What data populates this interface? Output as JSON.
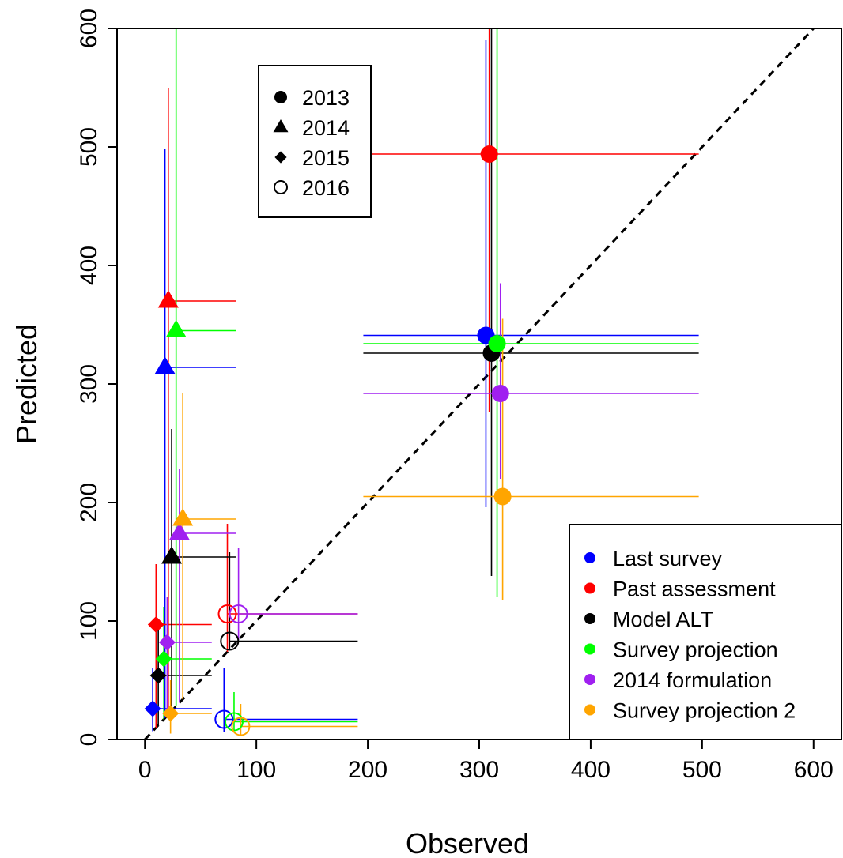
{
  "chart_data": {
    "type": "scatter",
    "title": "",
    "xlabel": "Observed",
    "ylabel": "Predicted",
    "xlim": [
      -25,
      625
    ],
    "ylim": [
      0,
      600
    ],
    "xticks": [
      "0",
      "100",
      "200",
      "300",
      "400",
      "500",
      "600"
    ],
    "yticks": [
      "0",
      "100",
      "200",
      "300",
      "400",
      "500",
      "600"
    ],
    "reference_line": {
      "type": "1:1",
      "style": "dashed",
      "color": "#000000"
    },
    "year_legend": {
      "placement": "top-left",
      "entries": [
        {
          "label": "2013",
          "shape": "circle-filled"
        },
        {
          "label": "2014",
          "shape": "triangle-filled"
        },
        {
          "label": "2015",
          "shape": "diamond-filled"
        },
        {
          "label": "2016",
          "shape": "circle-open"
        }
      ]
    },
    "method_legend": {
      "placement": "bottom-right",
      "entries": [
        {
          "label": "Last survey",
          "color": "#0000ff"
        },
        {
          "label": "Past assessment",
          "color": "#ff0000"
        },
        {
          "label": "Model ALT",
          "color": "#000000"
        },
        {
          "label": "Survey projection",
          "color": "#00ff00"
        },
        {
          "label": "2014 formulation",
          "color": "#a020f0"
        },
        {
          "label": "Survey projection 2",
          "color": "#ffa500"
        }
      ]
    },
    "series": [
      {
        "name": "Last survey",
        "color": "#0000ff",
        "points": [
          {
            "year": "2013",
            "x": 306,
            "y": 341,
            "xerr": [
              196,
              497
            ],
            "yerr": [
              196,
              590
            ]
          },
          {
            "year": "2014",
            "x": 18,
            "y": 314,
            "xerr": [
              18,
              82
            ],
            "yerr": [
              18,
              498
            ]
          },
          {
            "year": "2015",
            "x": 7,
            "y": 26,
            "xerr": [
              7,
              60
            ],
            "yerr": [
              7,
              60
            ]
          },
          {
            "year": "2016",
            "x": 71,
            "y": 17,
            "xerr": [
              71,
              191
            ],
            "yerr": [
              6,
              60
            ]
          }
        ]
      },
      {
        "name": "Past assessment",
        "color": "#ff0000",
        "points": [
          {
            "year": "2013",
            "x": 309,
            "y": 494,
            "xerr": [
              196,
              497
            ],
            "yerr": [
              276,
              600
            ]
          },
          {
            "year": "2014",
            "x": 21,
            "y": 370,
            "xerr": [
              21,
              82
            ],
            "yerr": [
              21,
              550
            ]
          },
          {
            "year": "2015",
            "x": 10,
            "y": 97,
            "xerr": [
              10,
              60
            ],
            "yerr": [
              10,
              148
            ]
          },
          {
            "year": "2016",
            "x": 74,
            "y": 106,
            "xerr": [
              74,
              191
            ],
            "yerr": [
              74,
              182
            ]
          }
        ]
      },
      {
        "name": "Model ALT",
        "color": "#000000",
        "points": [
          {
            "year": "2013",
            "x": 311,
            "y": 326,
            "xerr": [
              196,
              497
            ],
            "yerr": [
              138,
              600
            ]
          },
          {
            "year": "2014",
            "x": 24,
            "y": 154,
            "xerr": [
              24,
              82
            ],
            "yerr": [
              24,
              262
            ]
          },
          {
            "year": "2015",
            "x": 12,
            "y": 54,
            "xerr": [
              12,
              60
            ],
            "yerr": [
              12,
              95
            ]
          },
          {
            "year": "2016",
            "x": 76,
            "y": 83,
            "xerr": [
              76,
              191
            ],
            "yerr": [
              76,
              158
            ]
          }
        ]
      },
      {
        "name": "Survey projection",
        "color": "#00ff00",
        "points": [
          {
            "year": "2013",
            "x": 316,
            "y": 334,
            "xerr": [
              196,
              497
            ],
            "yerr": [
              120,
              600
            ]
          },
          {
            "year": "2014",
            "x": 28,
            "y": 345,
            "xerr": [
              28,
              82
            ],
            "yerr": [
              28,
              600
            ]
          },
          {
            "year": "2015",
            "x": 17,
            "y": 68,
            "xerr": [
              17,
              60
            ],
            "yerr": [
              17,
              112
            ]
          },
          {
            "year": "2016",
            "x": 80,
            "y": 15,
            "xerr": [
              80,
              191
            ],
            "yerr": [
              8,
              40
            ]
          }
        ]
      },
      {
        "name": "2014 formulation",
        "color": "#a020f0",
        "points": [
          {
            "year": "2013",
            "x": 319,
            "y": 292,
            "xerr": [
              196,
              497
            ],
            "yerr": [
              220,
              385
            ]
          },
          {
            "year": "2014",
            "x": 31,
            "y": 174,
            "xerr": [
              31,
              82
            ],
            "yerr": [
              31,
              228
            ]
          },
          {
            "year": "2015",
            "x": 20,
            "y": 82,
            "xerr": [
              20,
              60
            ],
            "yerr": [
              20,
              120
            ]
          },
          {
            "year": "2016",
            "x": 84,
            "y": 106,
            "xerr": [
              84,
              191
            ],
            "yerr": [
              84,
              162
            ]
          }
        ]
      },
      {
        "name": "Survey projection 2",
        "color": "#ffa500",
        "points": [
          {
            "year": "2013",
            "x": 321,
            "y": 205,
            "xerr": [
              196,
              497
            ],
            "yerr": [
              118,
              355
            ]
          },
          {
            "year": "2014",
            "x": 34,
            "y": 186,
            "xerr": [
              34,
              82
            ],
            "yerr": [
              34,
              292
            ]
          },
          {
            "year": "2015",
            "x": 23,
            "y": 22,
            "xerr": [
              23,
              60
            ],
            "yerr": [
              5,
              50
            ]
          },
          {
            "year": "2016",
            "x": 86,
            "y": 11,
            "xerr": [
              86,
              191
            ],
            "yerr": [
              4,
              30
            ]
          }
        ]
      }
    ]
  }
}
